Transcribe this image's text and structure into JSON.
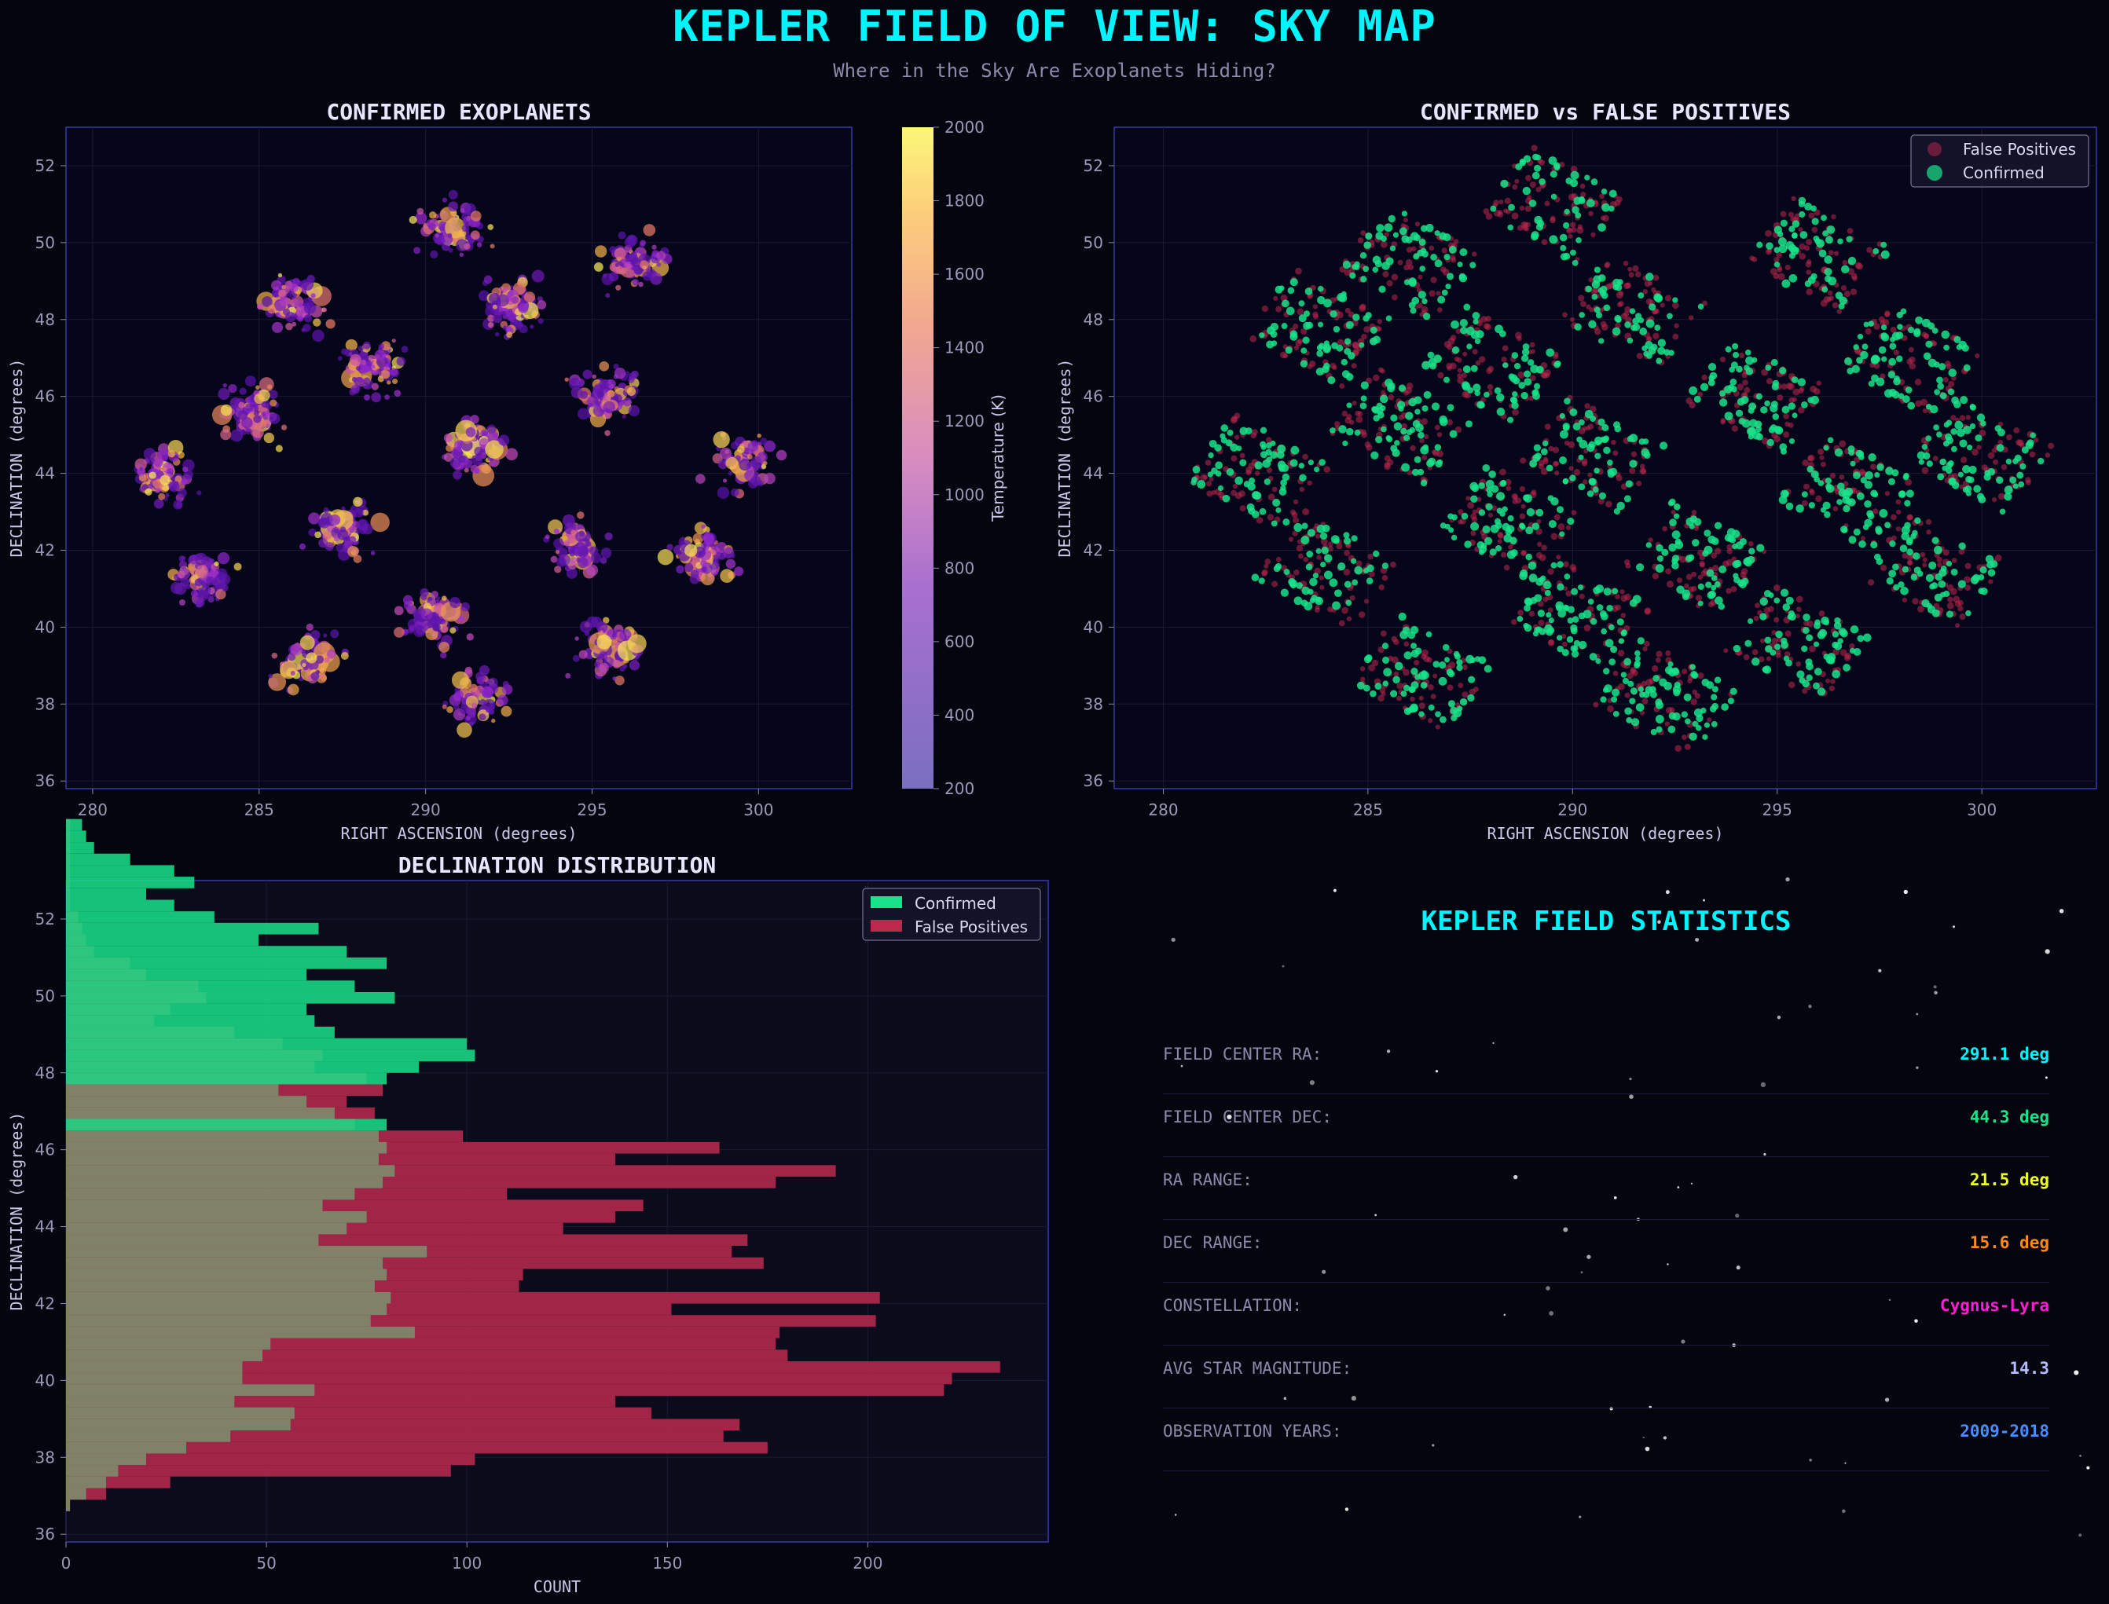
{
  "header": {
    "title": "KEPLER FIELD OF VIEW: SKY MAP",
    "subtitle": "Where in the Sky Are Exoplanets Hiding?"
  },
  "chart_data": [
    {
      "type": "scatter",
      "title": "CONFIRMED EXOPLANETS",
      "xlabel": "RIGHT ASCENSION (degrees)",
      "ylabel": "DECLINATION (degrees)",
      "xlim": [
        279.2,
        302.8
      ],
      "ylim": [
        35.8,
        53.0
      ],
      "xticks": [
        280,
        285,
        290,
        295,
        300
      ],
      "yticks": [
        36,
        38,
        40,
        42,
        44,
        46,
        48,
        50,
        52
      ],
      "colorbar": {
        "label": "Temperature (K)",
        "min": 200,
        "max": 2000,
        "ticks": [
          200,
          400,
          600,
          800,
          1000,
          1200,
          1400,
          1600,
          1800,
          2000
        ]
      },
      "clusters": [
        {
          "ra": 282.2,
          "dec": 43.9,
          "count": 95
        },
        {
          "ra": 286.0,
          "dec": 48.4,
          "count": 95
        },
        {
          "ra": 290.8,
          "dec": 50.3,
          "count": 85
        },
        {
          "ra": 284.8,
          "dec": 45.6,
          "count": 90
        },
        {
          "ra": 288.5,
          "dec": 46.8,
          "count": 95
        },
        {
          "ra": 292.5,
          "dec": 48.3,
          "count": 95
        },
        {
          "ra": 296.3,
          "dec": 49.5,
          "count": 85
        },
        {
          "ra": 283.3,
          "dec": 41.3,
          "count": 85
        },
        {
          "ra": 287.5,
          "dec": 42.6,
          "count": 95
        },
        {
          "ra": 291.5,
          "dec": 44.6,
          "count": 95
        },
        {
          "ra": 295.5,
          "dec": 46.0,
          "count": 95
        },
        {
          "ra": 299.5,
          "dec": 44.3,
          "count": 80
        },
        {
          "ra": 286.5,
          "dec": 39.1,
          "count": 75
        },
        {
          "ra": 290.2,
          "dec": 40.3,
          "count": 95
        },
        {
          "ra": 294.5,
          "dec": 42.1,
          "count": 95
        },
        {
          "ra": 298.3,
          "dec": 41.8,
          "count": 85
        },
        {
          "ra": 291.6,
          "dec": 38.1,
          "count": 70
        },
        {
          "ra": 295.5,
          "dec": 39.5,
          "count": 80
        }
      ],
      "seed": 11
    },
    {
      "type": "scatter",
      "title": "CONFIRMED vs FALSE POSITIVES",
      "xlabel": "RIGHT ASCENSION (degrees)",
      "ylabel": "DECLINATION (degrees)",
      "xlim": [
        278.8,
        302.8
      ],
      "ylim": [
        35.8,
        53.0
      ],
      "xticks": [
        280,
        285,
        290,
        295,
        300
      ],
      "yticks": [
        36,
        38,
        40,
        42,
        44,
        46,
        48,
        50,
        52
      ],
      "legend": [
        "False Positives",
        "Confirmed"
      ],
      "series_colors": {
        "false_positives": "#c0284f",
        "confirmed": "#19e38a"
      },
      "ccd_modules": [
        {
          "ra": 282.3,
          "dec": 44.0
        },
        {
          "ra": 283.8,
          "dec": 47.8
        },
        {
          "ra": 286.0,
          "dec": 49.5
        },
        {
          "ra": 289.5,
          "dec": 51.0
        },
        {
          "ra": 284.0,
          "dec": 41.5
        },
        {
          "ra": 285.8,
          "dec": 45.2
        },
        {
          "ra": 288.0,
          "dec": 46.8
        },
        {
          "ra": 291.5,
          "dec": 48.2
        },
        {
          "ra": 296.0,
          "dec": 49.7
        },
        {
          "ra": 286.3,
          "dec": 38.8
        },
        {
          "ra": 288.5,
          "dec": 42.7
        },
        {
          "ra": 290.5,
          "dec": 44.5
        },
        {
          "ra": 294.5,
          "dec": 46.0
        },
        {
          "ra": 298.2,
          "dec": 47.0
        },
        {
          "ra": 290.2,
          "dec": 40.3
        },
        {
          "ra": 293.0,
          "dec": 41.8
        },
        {
          "ra": 296.8,
          "dec": 43.5
        },
        {
          "ra": 300.0,
          "dec": 44.5
        },
        {
          "ra": 292.3,
          "dec": 38.2
        },
        {
          "ra": 295.5,
          "dec": 39.6
        },
        {
          "ra": 298.8,
          "dec": 41.5
        }
      ],
      "seed": 23
    },
    {
      "type": "bar",
      "orientation": "horizontal",
      "title": "DECLINATION DISTRIBUTION",
      "xlabel": "COUNT",
      "ylabel": "DECLINATION (degrees)",
      "xlim": [
        0,
        245
      ],
      "ylim": [
        35.8,
        53.0
      ],
      "xticks": [
        0,
        50,
        100,
        150,
        200
      ],
      "yticks": [
        36,
        38,
        40,
        42,
        44,
        46,
        48,
        50,
        52
      ],
      "legend": [
        "Confirmed",
        "False Positives"
      ],
      "bin_start": 36.6,
      "bin_width": 0.3,
      "series": [
        {
          "name": "Confirmed",
          "color": "#19e38a",
          "values": [
            1,
            5,
            10,
            13,
            20,
            30,
            41,
            56,
            57,
            42,
            62,
            44,
            44,
            49,
            51,
            87,
            76,
            80,
            81,
            77,
            80,
            79,
            90,
            63,
            70,
            75,
            64,
            72,
            79,
            82,
            78,
            80,
            78,
            80,
            67,
            60,
            53,
            80,
            88,
            102,
            100,
            67,
            62,
            60,
            82,
            72,
            60,
            80,
            70,
            48,
            63,
            37,
            27,
            20,
            32,
            27,
            16,
            7,
            5,
            4
          ]
        },
        {
          "name": "False Positives",
          "color": "#bb2a4d",
          "values": [
            1,
            10,
            26,
            96,
            102,
            175,
            164,
            168,
            146,
            137,
            219,
            221,
            233,
            180,
            177,
            178,
            202,
            151,
            203,
            113,
            114,
            174,
            166,
            170,
            124,
            137,
            144,
            110,
            177,
            192,
            137,
            163,
            99,
            72,
            77,
            70,
            79,
            75,
            62,
            64,
            54,
            42,
            22,
            26,
            35,
            33,
            20,
            16,
            7,
            5,
            4,
            3,
            1,
            1,
            1,
            1,
            1,
            1,
            1,
            1
          ]
        }
      ]
    }
  ],
  "stats": {
    "title": "KEPLER FIELD STATISTICS",
    "rows": [
      {
        "label": "FIELD CENTER RA:",
        "value": "291.1 deg",
        "color": "#00f5ff"
      },
      {
        "label": "FIELD CENTER DEC:",
        "value": "44.3 deg",
        "color": "#19e38a"
      },
      {
        "label": "RA RANGE:",
        "value": "21.5 deg",
        "color": "#f2ff20"
      },
      {
        "label": "DEC RANGE:",
        "value": "15.6 deg",
        "color": "#ff8a1a"
      },
      {
        "label": "CONSTELLATION:",
        "value": "Cygnus-Lyra",
        "color": "#ff1ed4"
      },
      {
        "label": "AVG STAR MAGNITUDE:",
        "value": "14.3",
        "color": "#b3bcff"
      },
      {
        "label": "OBSERVATION YEARS:",
        "value": "2009-2018",
        "color": "#4a8cff"
      }
    ]
  }
}
